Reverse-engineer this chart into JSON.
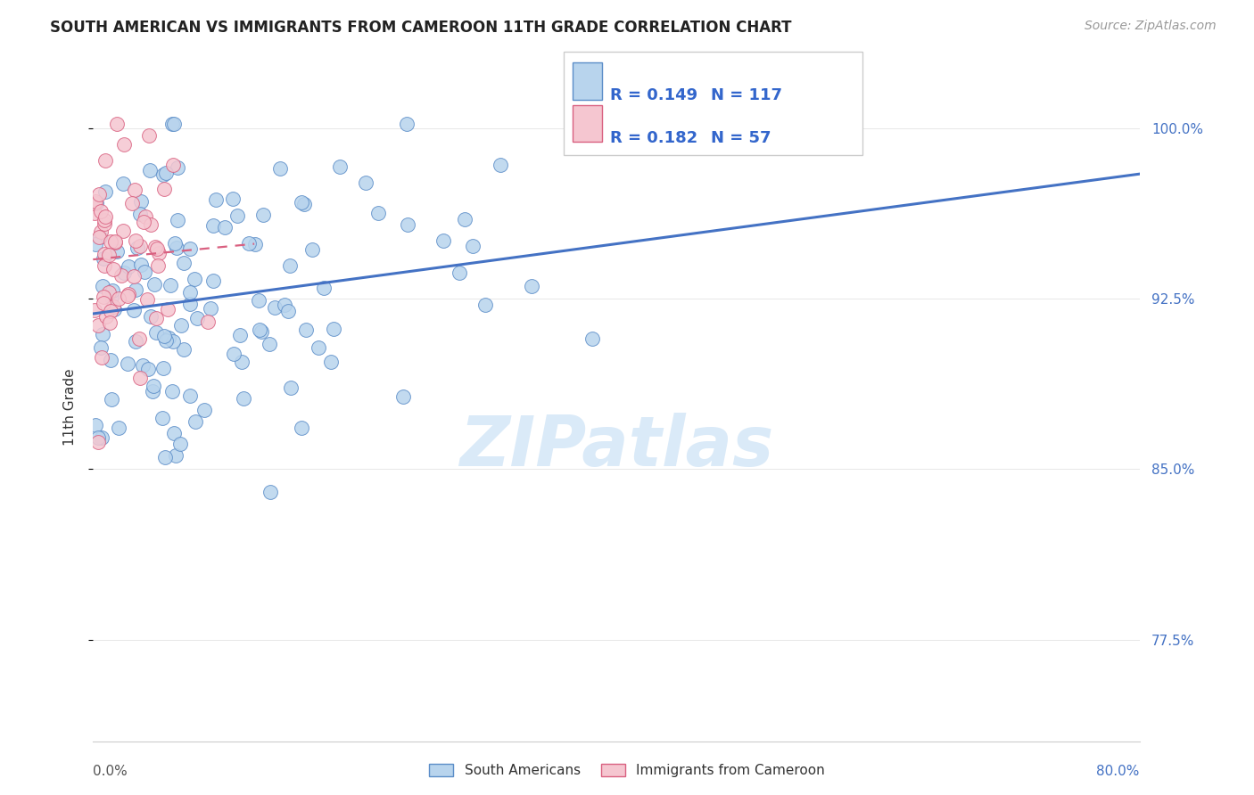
{
  "title": "SOUTH AMERICAN VS IMMIGRANTS FROM CAMEROON 11TH GRADE CORRELATION CHART",
  "source": "Source: ZipAtlas.com",
  "ylabel": "11th Grade",
  "ytick_labels": [
    "77.5%",
    "85.0%",
    "92.5%",
    "100.0%"
  ],
  "ytick_values": [
    0.775,
    0.85,
    0.925,
    1.0
  ],
  "xmin": 0.0,
  "xmax": 0.8,
  "ymin": 0.73,
  "ymax": 1.025,
  "r_blue": 0.149,
  "n_blue": 117,
  "r_pink": 0.182,
  "n_pink": 57,
  "legend_blue": "South Americans",
  "legend_pink": "Immigrants from Cameroon",
  "blue_color": "#b8d4ed",
  "blue_edge_color": "#5b8dc8",
  "blue_line_color": "#4472c4",
  "pink_color": "#f5c6d0",
  "pink_edge_color": "#d96080",
  "pink_line_color": "#d96080",
  "legend_text_color": "#3366cc",
  "watermark_color": "#daeaf8",
  "title_fontsize": 12,
  "source_fontsize": 10,
  "watermark": "ZIPatlas"
}
